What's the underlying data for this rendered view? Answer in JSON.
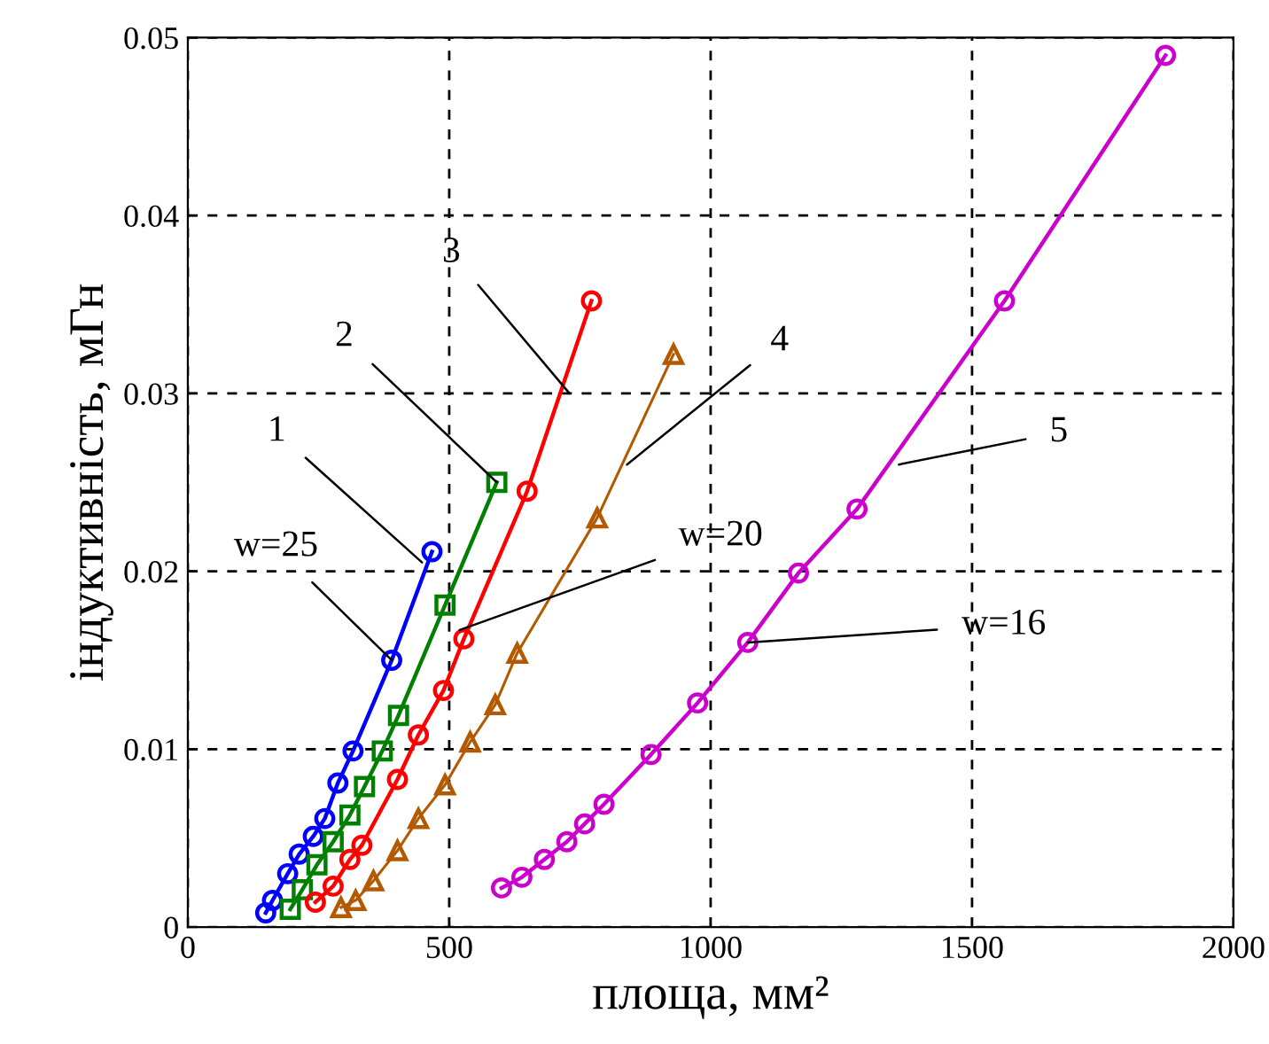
{
  "chart_data": {
    "type": "line",
    "xlabel": "площа, мм²",
    "ylabel": "індуктивність, мГн",
    "xlim": [
      0,
      2000
    ],
    "ylim": [
      0,
      0.05
    ],
    "xticks": [
      0,
      500,
      1000,
      1500,
      2000
    ],
    "yticks": [
      0,
      0.01,
      0.02,
      0.03,
      0.04,
      0.05
    ],
    "grid": true,
    "line_style": "solid",
    "series": [
      {
        "color": "#0000ff",
        "marker": "circle",
        "x": [
          149,
          162,
          191,
          213,
          240,
          262,
          287,
          316,
          390,
          467
        ],
        "values": [
          0.0008,
          0.0015,
          0.003,
          0.0041,
          0.0051,
          0.0061,
          0.0081,
          0.0099,
          0.015,
          0.0211
        ]
      },
      {
        "color": "#008000",
        "marker": "square",
        "x": [
          196,
          219,
          247,
          278,
          310,
          338,
          372,
          403,
          492,
          591
        ],
        "values": [
          0.001,
          0.0021,
          0.0035,
          0.0048,
          0.0063,
          0.0079,
          0.0099,
          0.0119,
          0.0181,
          0.025
        ]
      },
      {
        "color": "#ff0000",
        "marker": "circle",
        "x": [
          244,
          278,
          310,
          333,
          401,
          441,
          489,
          528,
          649,
          772
        ],
        "values": [
          0.0014,
          0.0023,
          0.0038,
          0.0046,
          0.0083,
          0.0108,
          0.0133,
          0.0162,
          0.0245,
          0.0352
        ]
      },
      {
        "color": "#b35900",
        "marker": "triangle",
        "x": [
          293,
          321,
          355,
          401,
          441,
          492,
          540,
          588,
          630,
          783,
          929
        ],
        "values": [
          0.0011,
          0.0015,
          0.0026,
          0.0043,
          0.0061,
          0.008,
          0.0104,
          0.0125,
          0.0154,
          0.023,
          0.0322
        ]
      },
      {
        "color": "#cc00cc",
        "marker": "circle",
        "x": [
          600,
          639,
          682,
          725,
          759,
          796,
          886,
          975,
          1071,
          1168,
          1280,
          1562,
          1870
        ],
        "values": [
          0.0022,
          0.0028,
          0.0038,
          0.0048,
          0.0058,
          0.0069,
          0.0097,
          0.0126,
          0.016,
          0.0199,
          0.0235,
          0.0352,
          0.049
        ]
      }
    ],
    "annotations": [
      {
        "text": "1",
        "x": 448,
        "y": 0.0205
      },
      {
        "text": "2",
        "x": 591,
        "y": 0.025
      },
      {
        "text": "3",
        "x": 730,
        "y": 0.03
      },
      {
        "text": "4",
        "x": 840,
        "y": 0.026
      },
      {
        "text": "5",
        "x": 1360,
        "y": 0.026
      },
      {
        "text": "w=25",
        "x": 390,
        "y": 0.015
      },
      {
        "text": "w=20",
        "x": 520,
        "y": 0.0167
      },
      {
        "text": "w=16",
        "x": 1071,
        "y": 0.016
      }
    ]
  }
}
